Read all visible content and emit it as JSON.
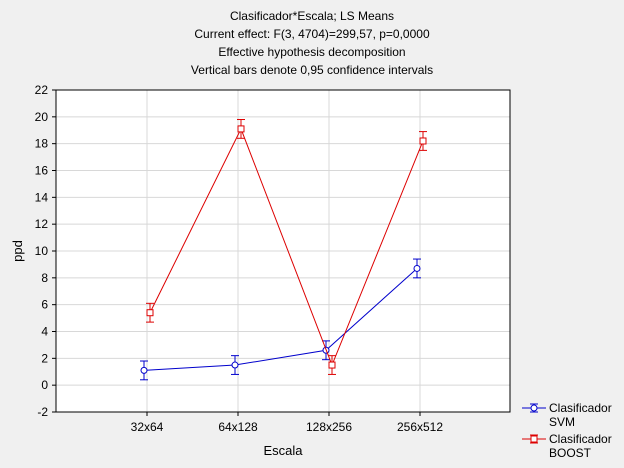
{
  "chart_data": {
    "type": "line",
    "title_lines": [
      "Clasificador*Escala; LS Means",
      "Current effect: F(3, 4704)=299,57, p=0,0000",
      "Effective hypothesis decomposition",
      "Vertical bars denote 0,95 confidence intervals"
    ],
    "xlabel": "Escala",
    "ylabel": "ppd",
    "categories": [
      "32x64",
      "64x128",
      "128x256",
      "256x512"
    ],
    "ylim": [
      -2,
      22
    ],
    "yticks": [
      -2,
      0,
      2,
      4,
      6,
      8,
      10,
      12,
      14,
      16,
      18,
      20,
      22
    ],
    "grid": true,
    "legend_position": "bottom-right",
    "series": [
      {
        "name": "Clasificador SVM",
        "legend_lines": [
          "Clasificador",
          "SVM"
        ],
        "color": "#0000cc",
        "marker": "circle",
        "values": [
          1.1,
          1.5,
          2.6,
          8.7
        ],
        "ci_low": [
          0.4,
          0.8,
          1.9,
          8.0
        ],
        "ci_high": [
          1.8,
          2.2,
          3.3,
          9.4
        ]
      },
      {
        "name": "Clasificador BOOST",
        "legend_lines": [
          "Clasificador",
          "BOOST"
        ],
        "color": "#dd0000",
        "marker": "square",
        "values": [
          5.4,
          19.1,
          1.5,
          18.2
        ],
        "ci_low": [
          4.7,
          18.4,
          0.8,
          17.5
        ],
        "ci_high": [
          6.1,
          19.8,
          2.2,
          18.9
        ]
      }
    ]
  }
}
